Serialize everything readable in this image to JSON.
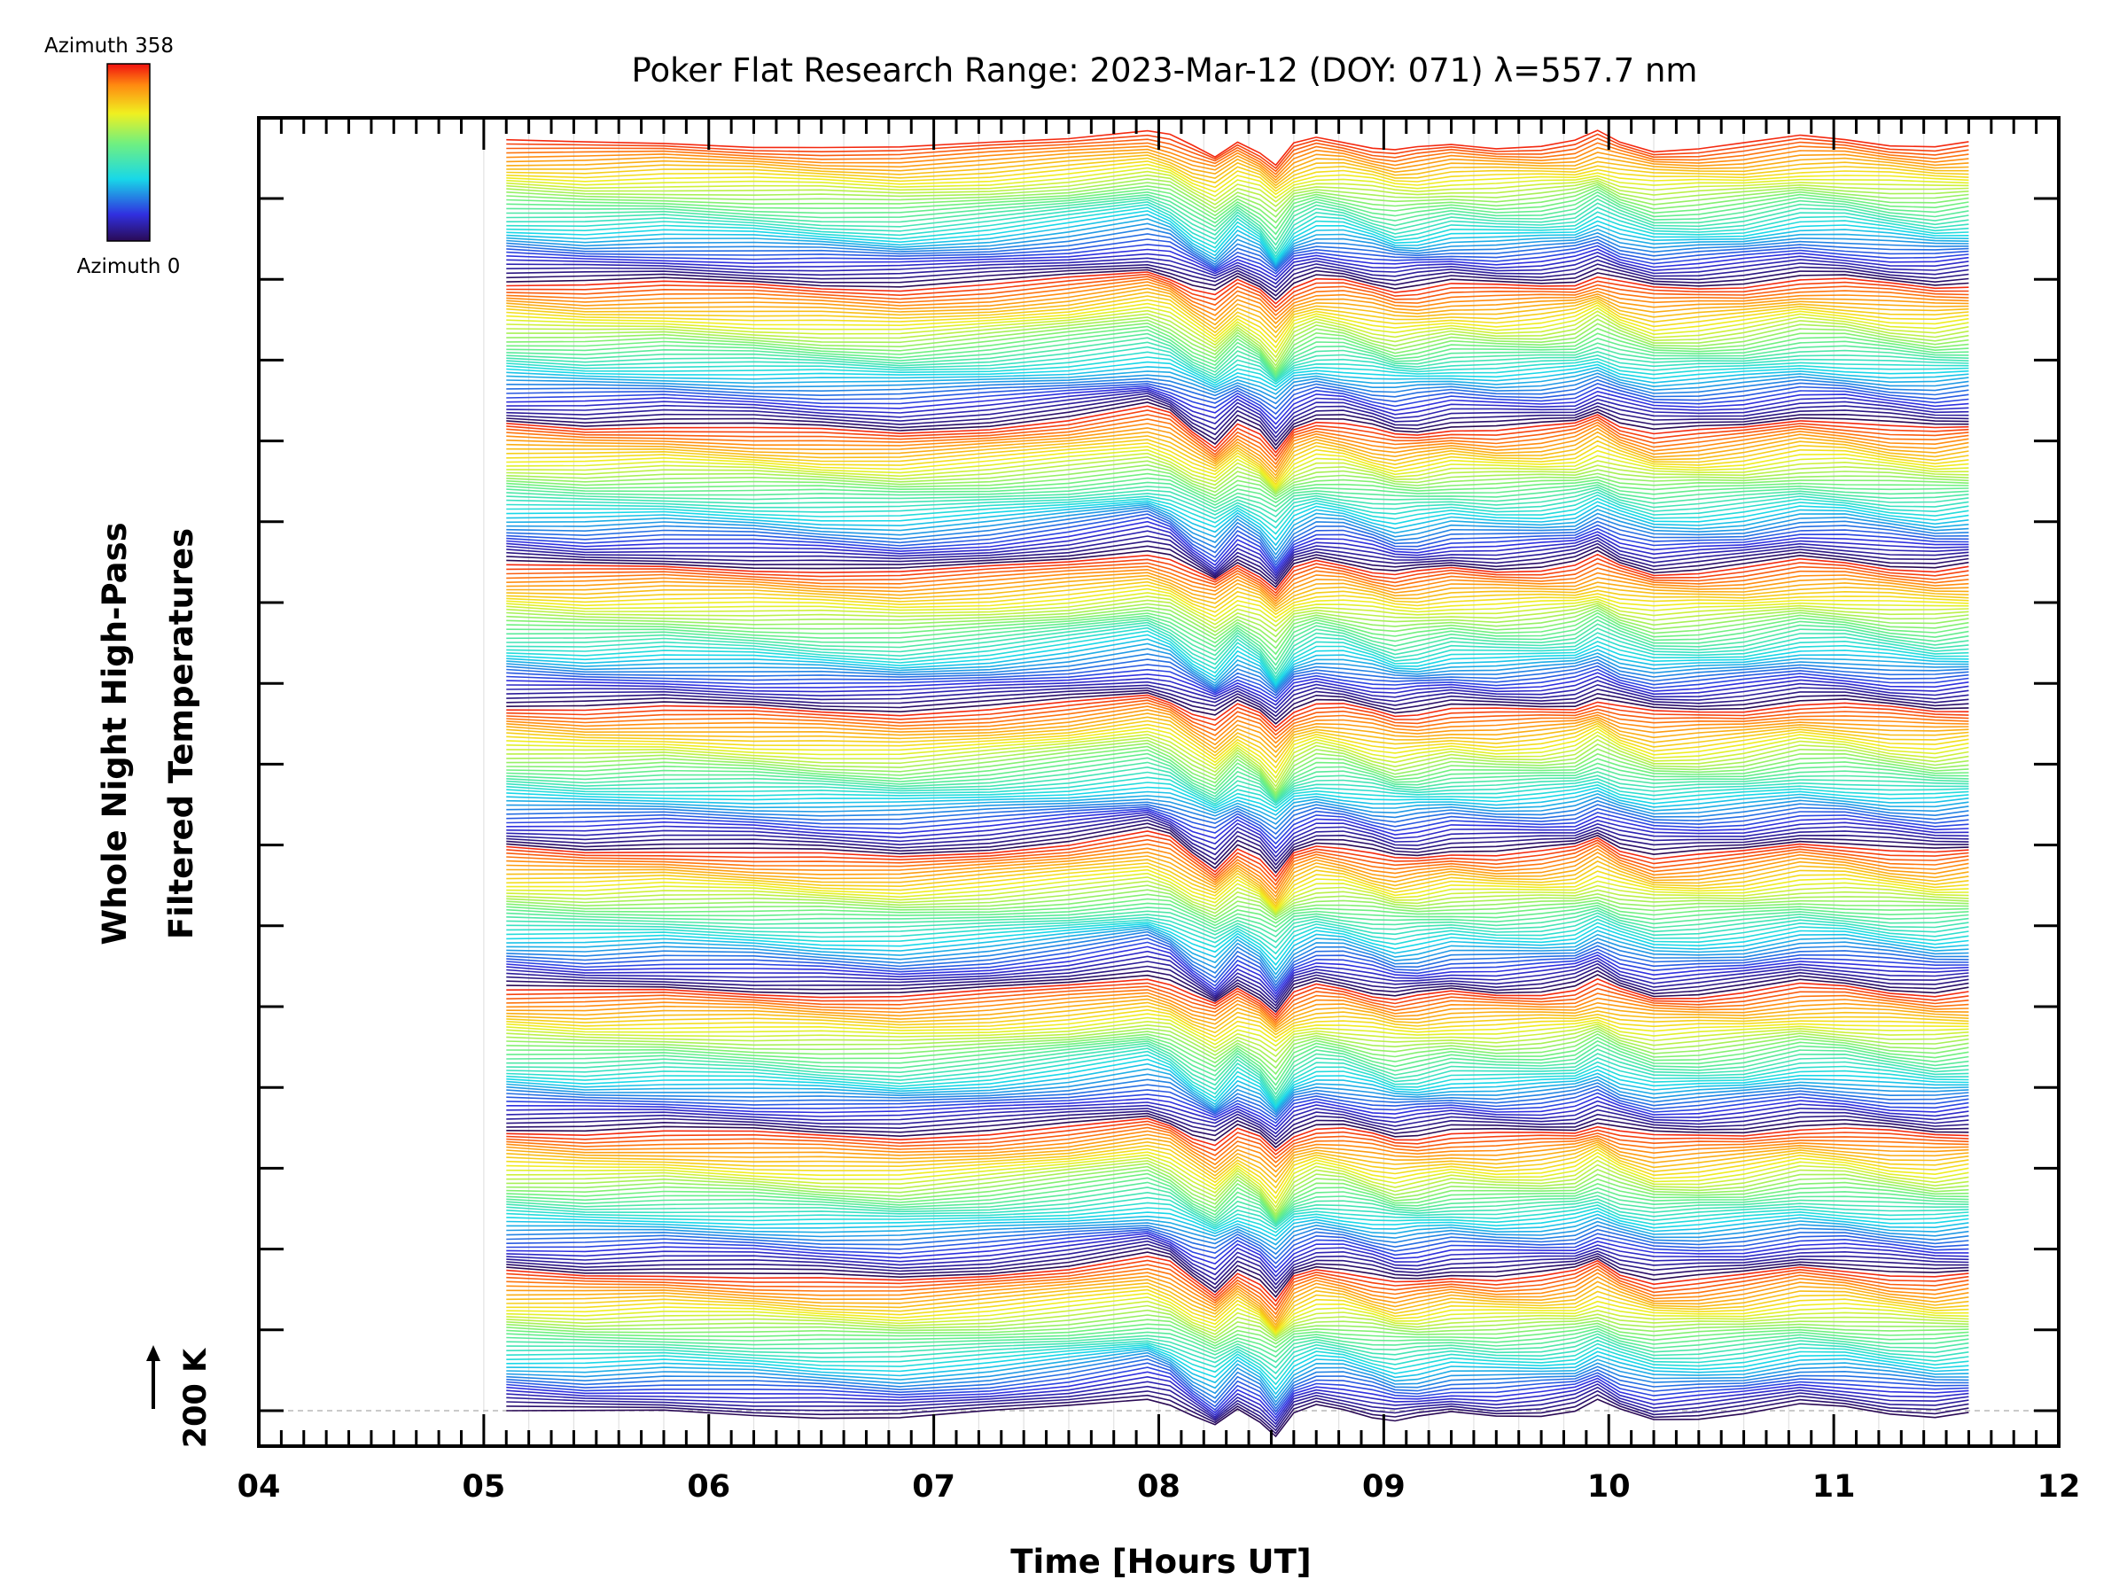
{
  "chart_data": {
    "type": "line",
    "title": "Poker Flat Research Range: 2023-Mar-12 (DOY: 071) λ=557.7 nm",
    "xlabel": "Time [Hours UT]",
    "ylabel_line1": "Whole Night High-Pass",
    "ylabel_line2": "Filtered Temperatures",
    "xlim": [
      4,
      12
    ],
    "x_ticks": [
      "04",
      "05",
      "06",
      "07",
      "08",
      "09",
      "10",
      "11",
      "12"
    ],
    "time_range": [
      5.1,
      11.6
    ],
    "scale_bar": "200 K",
    "colorbar": {
      "top_label": "Azimuth 358",
      "bottom_label": "Azimuth 0",
      "min": 0,
      "max": 358
    },
    "series_count": 360,
    "series_offset_step_K": 4.5,
    "profile": {
      "x": [
        5.1,
        5.45,
        5.8,
        6.2,
        6.5,
        6.85,
        7.25,
        7.6,
        7.95,
        8.05,
        8.15,
        8.25,
        8.35,
        8.45,
        8.52,
        8.6,
        8.7,
        8.82,
        8.95,
        9.05,
        9.15,
        9.3,
        9.5,
        9.7,
        9.85,
        9.95,
        10.05,
        10.2,
        10.4,
        10.6,
        10.85,
        11.05,
        11.25,
        11.45,
        11.6
      ],
      "y": [
        0,
        -3,
        -1,
        -4,
        -7,
        -10,
        -3,
        6,
        18,
        10,
        -8,
        -22,
        2,
        -12,
        -32,
        -5,
        5,
        2,
        -6,
        -12,
        -10,
        -4,
        -6,
        -4,
        0,
        12,
        0,
        -10,
        -8,
        -4,
        6,
        4,
        -2,
        -6,
        -3
      ]
    }
  }
}
